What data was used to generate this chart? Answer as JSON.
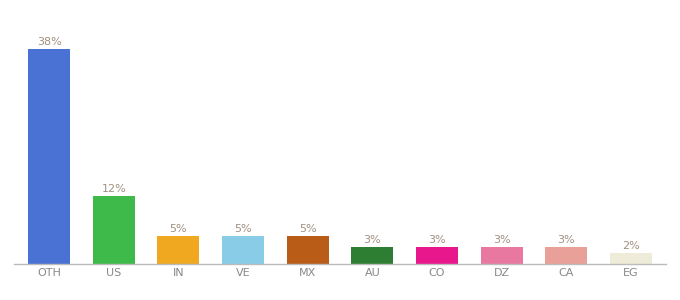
{
  "categories": [
    "OTH",
    "US",
    "IN",
    "VE",
    "MX",
    "AU",
    "CO",
    "DZ",
    "CA",
    "EG"
  ],
  "values": [
    38,
    12,
    5,
    5,
    5,
    3,
    3,
    3,
    3,
    2
  ],
  "bar_colors": [
    "#4a72d4",
    "#3dba4a",
    "#f0a820",
    "#88cce8",
    "#b85c18",
    "#2d7d32",
    "#e8188c",
    "#e878a0",
    "#e8a098",
    "#eeecd8"
  ],
  "xlabel": "",
  "ylabel": "",
  "ylim": [
    0,
    44
  ],
  "bar_width": 0.65,
  "label_fontsize": 8,
  "tick_fontsize": 8,
  "label_color": "#a09080",
  "tick_color": "#888888",
  "background_color": "#ffffff",
  "bottom_spine_color": "#bbbbbb"
}
